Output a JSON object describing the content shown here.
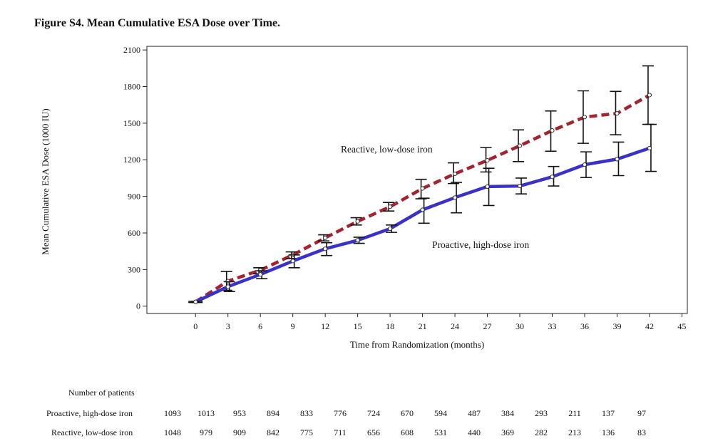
{
  "figure_title": "Figure S4. Mean Cumulative ESA Dose over Time.",
  "chart_data": {
    "type": "line",
    "title": "Figure S4. Mean Cumulative ESA Dose over Time.",
    "xlabel": "Time from Randomization (months)",
    "ylabel": "Mean Cumulative ESA Dose (1000 IU)",
    "xlim": [
      -4.5,
      45.5
    ],
    "ylim": [
      -60,
      2130
    ],
    "x_ticks": [
      0,
      3,
      6,
      9,
      12,
      15,
      18,
      21,
      24,
      27,
      30,
      33,
      36,
      39,
      42,
      45
    ],
    "y_ticks": [
      0,
      300,
      600,
      900,
      1200,
      1500,
      1800,
      2100
    ],
    "x": [
      0,
      3,
      6,
      9,
      12,
      15,
      18,
      21,
      24,
      27,
      30,
      33,
      36,
      39,
      42
    ],
    "series": [
      {
        "name": "Reactive, low-dose iron",
        "color": "#a4232f",
        "line_style": "dashed",
        "values": [
          35,
          205,
          295,
          420,
          560,
          695,
          815,
          965,
          1085,
          1195,
          1315,
          1440,
          1550,
          1580,
          1730
        ],
        "error_low": [
          30,
          130,
          265,
          390,
          535,
          665,
          780,
          880,
          1005,
          1100,
          1185,
          1270,
          1335,
          1405,
          1490
        ],
        "error_high": [
          40,
          285,
          315,
          445,
          585,
          725,
          850,
          1040,
          1175,
          1300,
          1445,
          1600,
          1765,
          1760,
          1970
        ]
      },
      {
        "name": "Proactive, high-dose iron",
        "color": "#3a32c8",
        "line_style": "solid",
        "values": [
          35,
          160,
          260,
          370,
          470,
          540,
          635,
          790,
          890,
          980,
          985,
          1060,
          1160,
          1205,
          1295
        ],
        "error_low": [
          30,
          120,
          225,
          315,
          415,
          515,
          605,
          680,
          765,
          825,
          920,
          985,
          1055,
          1070,
          1105
        ],
        "error_high": [
          40,
          200,
          290,
          420,
          520,
          565,
          665,
          885,
          1015,
          1130,
          1050,
          1145,
          1265,
          1345,
          1490
        ]
      }
    ],
    "legend": "inline labels"
  },
  "risk_table": {
    "header": "Number of patients",
    "rows": [
      {
        "label": "Proactive, high-dose iron",
        "values": [
          "1093",
          "1013",
          "953",
          "894",
          "833",
          "776",
          "724",
          "670",
          "594",
          "487",
          "384",
          "293",
          "211",
          "137",
          "97"
        ]
      },
      {
        "label": "Reactive, low-dose iron",
        "values": [
          "1048",
          "979",
          "909",
          "842",
          "775",
          "711",
          "656",
          "608",
          "531",
          "440",
          "369",
          "282",
          "213",
          "136",
          "83"
        ]
      }
    ]
  }
}
